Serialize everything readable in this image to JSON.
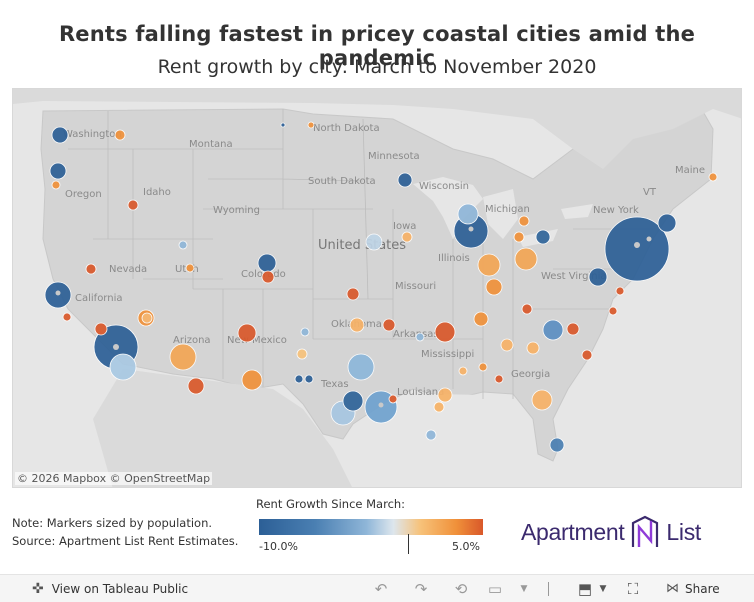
{
  "header": {
    "title": "Rents falling fastest in pricey coastal cities amid the pandemic",
    "subtitle": "Rent growth by city: March to November 2020"
  },
  "map": {
    "copyright": "© 2026 Mapbox  © OpenStreetMap",
    "labels": {
      "washington": "Washington",
      "montana": "Montana",
      "north_dakota": "North Dakota",
      "minnesota": "Minnesota",
      "south_dakota": "South Dakota",
      "wisconsin": "Wisconsin",
      "michigan": "Michigan",
      "maine": "Maine",
      "vt": "VT",
      "new_york": "New York",
      "oregon": "Oregon",
      "idaho": "Idaho",
      "wyoming": "Wyoming",
      "iowa": "Iowa",
      "united_states": "United States",
      "illinois": "Illinois",
      "nevada": "Nevada",
      "utah": "Utah",
      "colorado": "Colorado",
      "missouri": "Missouri",
      "west_virginia": "West Virginia",
      "california": "California",
      "arizona": "Arizona",
      "new_mexico": "New Mexico",
      "oklahoma": "Oklahoma",
      "arkansas": "Arkansas",
      "mississippi": "Mississippi",
      "georgia": "Georgia",
      "texas": "Texas",
      "louisiana": "Louisiana"
    }
  },
  "legend": {
    "title": "Rent Growth Since March:",
    "min_label": "-10.0%",
    "max_label": "5.0%",
    "min_value": -10.0,
    "max_value": 5.0,
    "colors": [
      "#2c5f96",
      "#4a7fb2",
      "#8fb6d8",
      "#dde6ed",
      "#f7c27a",
      "#f0913a",
      "#d9582a"
    ]
  },
  "notes": {
    "line1": "Note: Markers sized by population.",
    "line2": "Source: Apartment List Rent Estimates."
  },
  "brand": {
    "left": "Apartment",
    "right": "List"
  },
  "toolbar": {
    "view_label": "View on Tableau Public",
    "share_label": "Share"
  }
}
